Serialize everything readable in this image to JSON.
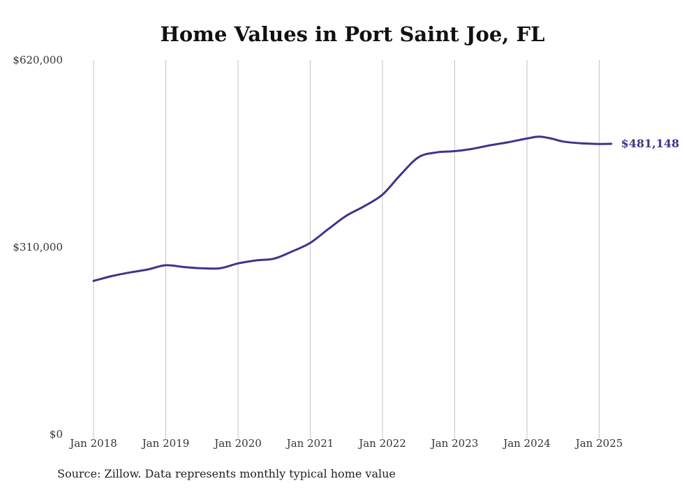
{
  "chart_data": {
    "type": "line",
    "title": "Home Values in Port Saint Joe, FL",
    "xlabel": "",
    "ylabel": "",
    "ylim": [
      0,
      620000
    ],
    "y_ticks": [
      {
        "value": 0,
        "label": "$0"
      },
      {
        "value": 310000,
        "label": "$310,000"
      },
      {
        "value": 620000,
        "label": "$620,000"
      }
    ],
    "x_ticks": [
      {
        "value": 2018,
        "label": "Jan 2018"
      },
      {
        "value": 2019,
        "label": "Jan 2019"
      },
      {
        "value": 2020,
        "label": "Jan 2020"
      },
      {
        "value": 2021,
        "label": "Jan 2021"
      },
      {
        "value": 2022,
        "label": "Jan 2022"
      },
      {
        "value": 2023,
        "label": "Jan 2023"
      },
      {
        "value": 2024,
        "label": "Jan 2024"
      },
      {
        "value": 2025,
        "label": "Jan 2025"
      }
    ],
    "grid": "vertical",
    "line_color": "#3d3589",
    "series": [
      {
        "name": "",
        "points": [
          {
            "x": "2018-01",
            "y": 254000
          },
          {
            "x": "2018-04",
            "y": 262000
          },
          {
            "x": "2018-07",
            "y": 268000
          },
          {
            "x": "2018-10",
            "y": 273000
          },
          {
            "x": "2019-01",
            "y": 280000
          },
          {
            "x": "2019-04",
            "y": 277000
          },
          {
            "x": "2019-07",
            "y": 275000
          },
          {
            "x": "2019-10",
            "y": 275000
          },
          {
            "x": "2020-01",
            "y": 283000
          },
          {
            "x": "2020-04",
            "y": 288000
          },
          {
            "x": "2020-07",
            "y": 291000
          },
          {
            "x": "2020-10",
            "y": 303000
          },
          {
            "x": "2021-01",
            "y": 317000
          },
          {
            "x": "2021-04",
            "y": 340000
          },
          {
            "x": "2021-07",
            "y": 362000
          },
          {
            "x": "2021-10",
            "y": 378000
          },
          {
            "x": "2022-01",
            "y": 397000
          },
          {
            "x": "2022-04",
            "y": 430000
          },
          {
            "x": "2022-07",
            "y": 459000
          },
          {
            "x": "2022-10",
            "y": 467000
          },
          {
            "x": "2023-01",
            "y": 469000
          },
          {
            "x": "2023-04",
            "y": 473000
          },
          {
            "x": "2023-07",
            "y": 479000
          },
          {
            "x": "2023-10",
            "y": 484000
          },
          {
            "x": "2024-01",
            "y": 490000
          },
          {
            "x": "2024-03",
            "y": 493000
          },
          {
            "x": "2024-05",
            "y": 490000
          },
          {
            "x": "2024-07",
            "y": 485000
          },
          {
            "x": "2024-10",
            "y": 482000
          },
          {
            "x": "2025-01",
            "y": 481000
          },
          {
            "x": "2025-03",
            "y": 481148
          }
        ]
      }
    ],
    "end_label": "$481,148",
    "source": "Source: Zillow. Data represents monthly typical home value"
  }
}
